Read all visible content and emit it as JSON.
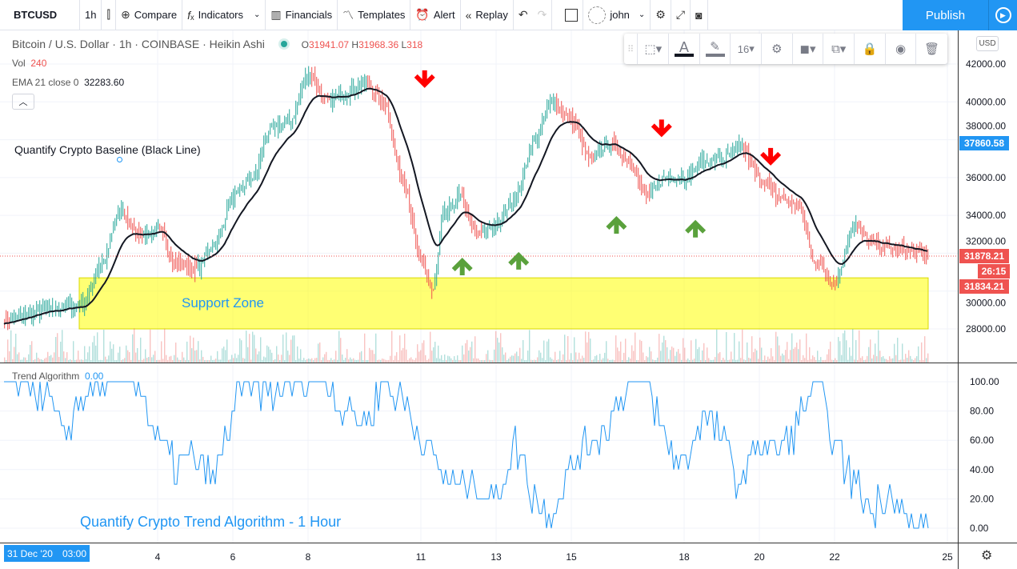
{
  "toolbar": {
    "symbol": "BTCUSD",
    "interval": "1h",
    "compare": "Compare",
    "indicators": "Indicators",
    "financials": "Financials",
    "templates": "Templates",
    "alert": "Alert",
    "replay": "Replay",
    "user": "john",
    "publish": "Publish"
  },
  "drawing_toolbar": {
    "font_size": "16"
  },
  "legend": {
    "title": "Bitcoin / U.S. Dollar · 1h · COINBASE · Heikin Ashi",
    "o_label": "O",
    "o": "31941.07",
    "h_label": "H",
    "h": "31968.36",
    "l_label": "L",
    "l": "318",
    "vol_label": "Vol",
    "vol": "240",
    "ema_label": "EMA 21 close 0",
    "ema": "32283.60",
    "trend_label": "Trend Algorithm",
    "trend": "0.00"
  },
  "annotations": {
    "baseline": "Quantify Crypto Baseline (Black Line)",
    "support": "Support Zone",
    "trend_title": "Quantify Crypto Trend Algorithm - 1 Hour"
  },
  "price_axis": {
    "currency": "USD",
    "ticks": [
      "42000.00",
      "40000.00",
      "38000.00",
      "36000.00",
      "34000.00",
      "32000.00",
      "30000.00",
      "28000.00"
    ],
    "ema_label": "37860.58",
    "last_price": "31878.21",
    "countdown": "26:15",
    "low_label": "31834.21"
  },
  "trend_axis": {
    "ticks": [
      "100.00",
      "80.00",
      "60.00",
      "40.00",
      "20.00",
      "0.00"
    ]
  },
  "time_axis": {
    "current": {
      "date": "31 Dec '20",
      "time": "03:00"
    },
    "ticks": [
      {
        "day": 4,
        "label": "4"
      },
      {
        "day": 6,
        "label": "6"
      },
      {
        "day": 8,
        "label": "8"
      },
      {
        "day": 11,
        "label": "11"
      },
      {
        "day": 13,
        "label": "13"
      },
      {
        "day": 15,
        "label": "15"
      },
      {
        "day": 18,
        "label": "18"
      },
      {
        "day": 20,
        "label": "20"
      },
      {
        "day": 22,
        "label": "22"
      },
      {
        "day": 25,
        "label": "25"
      }
    ]
  },
  "colors": {
    "up": "#26a69a",
    "down": "#ef5350",
    "accent": "#2196f3",
    "ema": "#131722",
    "support": "#ffff00",
    "trend_line": "#2196f3",
    "arrow_down": "#ff0000",
    "arrow_up": "#5aa13c"
  },
  "price_path": [
    [
      0,
      28500
    ],
    [
      1,
      29000
    ],
    [
      2,
      29300
    ],
    [
      2.5,
      31500
    ],
    [
      3,
      34200
    ],
    [
      3.5,
      33000
    ],
    [
      4,
      33200
    ],
    [
      4.5,
      31500
    ],
    [
      5,
      31200
    ],
    [
      5.5,
      32500
    ],
    [
      6,
      35000
    ],
    [
      6.5,
      36000
    ],
    [
      7,
      38500
    ],
    [
      7.5,
      39000
    ],
    [
      8,
      41500
    ],
    [
      8.5,
      40000
    ],
    [
      9,
      40500
    ],
    [
      9.5,
      41000
    ],
    [
      10,
      40000
    ],
    [
      10.5,
      36000
    ],
    [
      11,
      31500
    ],
    [
      11.3,
      30000
    ],
    [
      11.6,
      34000
    ],
    [
      12,
      35000
    ],
    [
      12.5,
      33000
    ],
    [
      13,
      33500
    ],
    [
      13.5,
      35000
    ],
    [
      14,
      38000
    ],
    [
      14.5,
      40000
    ],
    [
      15,
      39000
    ],
    [
      15.5,
      37000
    ],
    [
      16,
      37800
    ],
    [
      16.5,
      37000
    ],
    [
      17,
      35000
    ],
    [
      17.5,
      36000
    ],
    [
      18,
      36000
    ],
    [
      18.5,
      36800
    ],
    [
      19,
      37000
    ],
    [
      19.5,
      37600
    ],
    [
      20,
      36000
    ],
    [
      20.5,
      35000
    ],
    [
      21,
      34500
    ],
    [
      21.5,
      31500
    ],
    [
      22,
      30500
    ],
    [
      22.5,
      33500
    ],
    [
      23,
      32500
    ],
    [
      23.5,
      32300
    ],
    [
      24.5,
      31900
    ]
  ],
  "trend_values": [
    100,
    100,
    90,
    60,
    90,
    100,
    100,
    100,
    60,
    40,
    50,
    30,
    80,
    100,
    90,
    100,
    100,
    100,
    80,
    70,
    100,
    90,
    60,
    40,
    30,
    30,
    20,
    60,
    20,
    10,
    40,
    60,
    70,
    100,
    100,
    60,
    40,
    80,
    60,
    30,
    60,
    50,
    70,
    100,
    60,
    30,
    10,
    30,
    0,
    0,
    50,
    30,
    60,
    30,
    60,
    0
  ],
  "support_zone": [
    28000,
    30700
  ],
  "arrows": [
    {
      "dir": "down",
      "day": 11.1,
      "price": 41200
    },
    {
      "dir": "down",
      "day": 17.4,
      "price": 38600
    },
    {
      "dir": "down",
      "day": 20.3,
      "price": 37100
    },
    {
      "dir": "up",
      "day": 12.1,
      "price": 31300
    },
    {
      "dir": "up",
      "day": 13.6,
      "price": 31600
    },
    {
      "dir": "up",
      "day": 16.2,
      "price": 33500
    },
    {
      "dir": "up",
      "day": 18.3,
      "price": 33300
    }
  ]
}
